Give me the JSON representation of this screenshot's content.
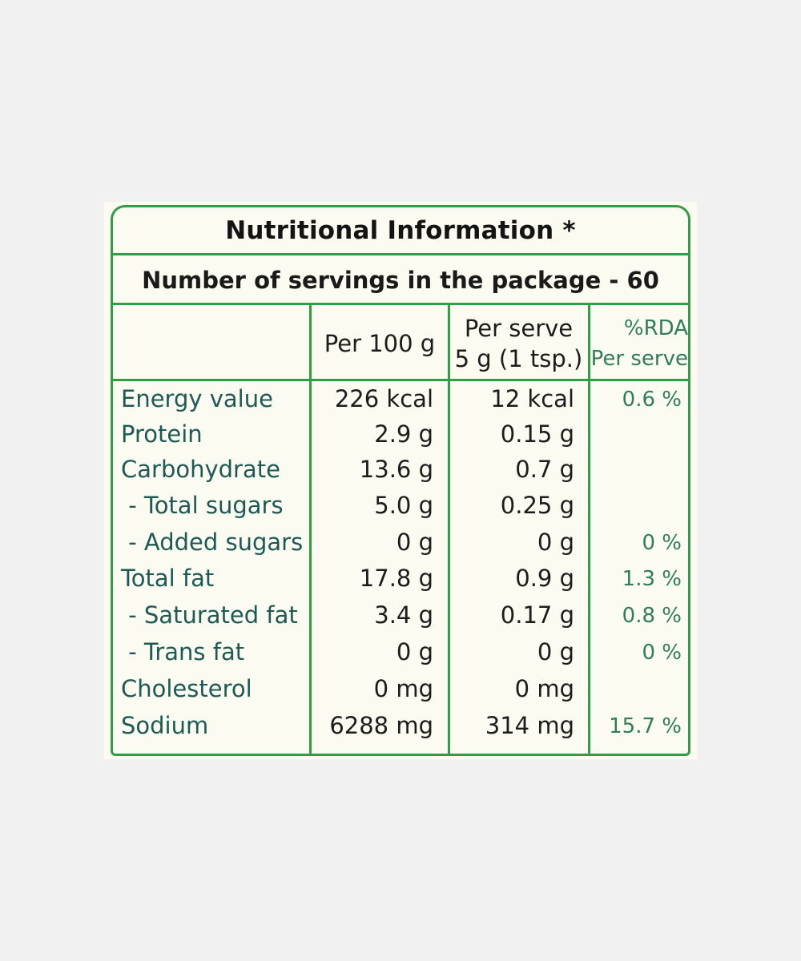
{
  "title": "Nutritional Information *",
  "servings_line": "Number of servings in the package - 60",
  "columns": {
    "per100": "Per 100 g",
    "serve_line1": "Per serve",
    "serve_line2": "5 g (1 tsp.)",
    "rda_line1": "%RDA",
    "rda_line2": "Per serve"
  },
  "rows": [
    {
      "name": "Energy value",
      "per100": "226 kcal",
      "serve": "12 kcal",
      "rda": "0.6 %"
    },
    {
      "name": "Protein",
      "per100": "2.9 g",
      "serve": "0.15 g",
      "rda": ""
    },
    {
      "name": "Carbohydrate",
      "per100": "13.6 g",
      "serve": "0.7 g",
      "rda": ""
    },
    {
      "name": " - Total sugars",
      "per100": "5.0 g",
      "serve": "0.25 g",
      "rda": ""
    },
    {
      "name": " - Added sugars",
      "per100": "0 g",
      "serve": "0 g",
      "rda": "0 %"
    },
    {
      "name": "Total fat",
      "per100": "17.8 g",
      "serve": "0.9 g",
      "rda": "1.3 %"
    },
    {
      "name": " - Saturated fat",
      "per100": "3.4 g",
      "serve": "0.17 g",
      "rda": "0.8 %"
    },
    {
      "name": " - Trans fat",
      "per100": "0 g",
      "serve": "0 g",
      "rda": "0 %"
    },
    {
      "name": "Cholesterol",
      "per100": "0 mg",
      "serve": "0 mg",
      "rda": ""
    },
    {
      "name": "Sodium",
      "per100": "6288 mg",
      "serve": "314 mg",
      "rda": "15.7 %"
    }
  ],
  "colors": {
    "border": "#2f9e45",
    "label_bg": "#fbfbf1",
    "page_bg": "#f1f1f1",
    "rda_text": "#2f7d5a"
  }
}
